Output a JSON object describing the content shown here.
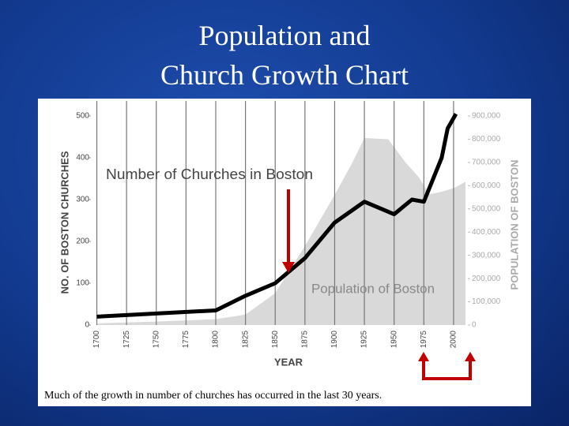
{
  "slide": {
    "title_lines": [
      "Population and",
      "Church Growth Chart"
    ],
    "caption": "Much of the growth in number of churches has occurred in the last 30 years."
  },
  "chart_data": {
    "type": "line",
    "xlabel": "YEAR",
    "ylabel": "NO. OF BOSTON CHURCHES",
    "y2label": "POPULATION OF BOSTON",
    "annotations": [
      "Number of Churches in Boston",
      "Population of Boston"
    ],
    "xlim": [
      1695,
      2012
    ],
    "xticks": [
      1700,
      1725,
      1750,
      1775,
      1800,
      1825,
      1850,
      1875,
      1900,
      1925,
      1950,
      1975,
      2000
    ],
    "ylim": [
      0,
      500
    ],
    "yticks": [
      0,
      100,
      200,
      300,
      400,
      500
    ],
    "y2lim": [
      0,
      900000
    ],
    "y2ticks": [
      0,
      {
        "value": 100000,
        "label": "100,000"
      },
      {
        "value": 200000,
        "label": "200,000"
      },
      {
        "value": 300000,
        "label": "300,000"
      },
      {
        "value": 400000,
        "label": "400,000"
      },
      {
        "value": 500000,
        "label": "500,000"
      },
      {
        "value": 600000,
        "label": "600,000"
      },
      {
        "value": 700000,
        "label": "700,000"
      },
      {
        "value": 800000,
        "label": "800,000"
      },
      {
        "value": 900000,
        "label": "900,000"
      }
    ],
    "grid": true,
    "series": [
      {
        "name": "Population of Boston",
        "type": "area",
        "axis": "y2",
        "color": "#d9d9d9",
        "x": [
          1700,
          1750,
          1800,
          1825,
          1850,
          1875,
          1900,
          1915,
          1925,
          1945,
          1960,
          1970,
          1980,
          1990,
          2000,
          2010
        ],
        "values": [
          7000,
          15000,
          25000,
          45000,
          137000,
          340000,
          560000,
          700000,
          805000,
          800000,
          697000,
          641000,
          563000,
          574000,
          589000,
          617000
        ]
      },
      {
        "name": "Number of Churches in Boston",
        "type": "line",
        "color": "#000000",
        "x": [
          1700,
          1800,
          1825,
          1850,
          1875,
          1900,
          1925,
          1950,
          1965,
          1975,
          1990,
          1995,
          2002
        ],
        "values": [
          20,
          35,
          70,
          100,
          160,
          245,
          295,
          265,
          300,
          295,
          400,
          470,
          505
        ]
      }
    ]
  }
}
